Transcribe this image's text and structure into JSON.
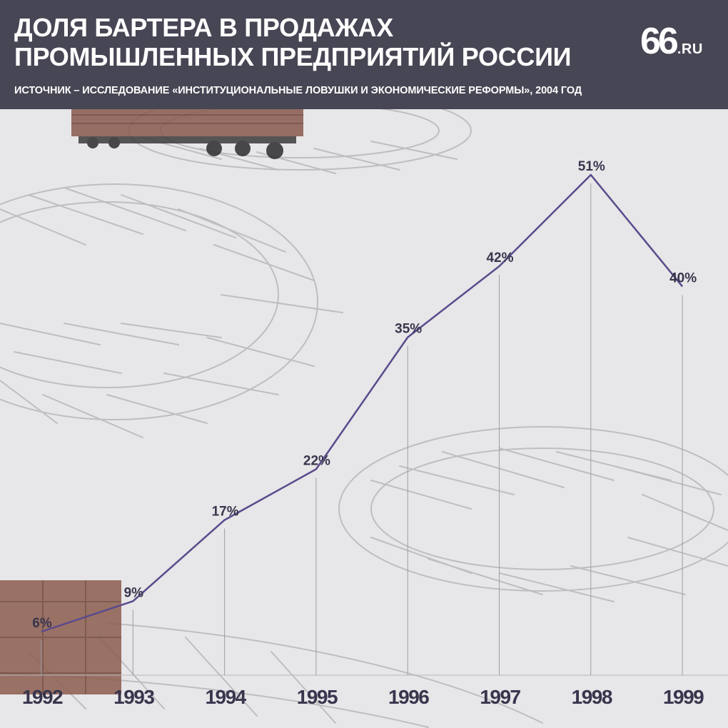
{
  "header": {
    "title_line1": "ДОЛЯ БАРТЕРА В ПРОДАЖАХ",
    "title_line2": "ПРОМЫШЛЕННЫХ ПРЕДПРИЯТИЙ РОССИИ",
    "source": "ИСТОЧНИК – ИССЛЕДОВАНИЕ «ИНСТИТУЦИОНАЛЬНЫЕ ЛОВУШКИ И ЭКОНОМИЧЕСКИЕ РЕФОРМЫ», 2004 ГОД",
    "logo_number": "66",
    "logo_domain": ".RU"
  },
  "colors": {
    "header_bg": "#474654",
    "page_bg": "#e7e6e8",
    "line": "#5a4a8c",
    "label": "#38364d",
    "dropline": "#9e9ca8"
  },
  "chart_data": {
    "type": "line",
    "x": [
      1992,
      1993,
      1994,
      1995,
      1996,
      1997,
      1998,
      1999
    ],
    "categories": [
      "1992",
      "1993",
      "1994",
      "1995",
      "1996",
      "1997",
      "1998",
      "1999"
    ],
    "values": [
      6,
      9,
      17,
      22,
      35,
      42,
      51,
      40
    ],
    "value_labels": [
      "6%",
      "9%",
      "17%",
      "22%",
      "35%",
      "42%",
      "51%",
      "40%"
    ],
    "title": "ДОЛЯ БАРТЕРА В ПРОДАЖАХ ПРОМЫШЛЕННЫХ ПРЕДПРИЯТИЙ РОССИИ",
    "xlabel": "",
    "ylabel": "",
    "ylim": [
      0,
      51
    ],
    "grid": false,
    "legend": "none"
  }
}
